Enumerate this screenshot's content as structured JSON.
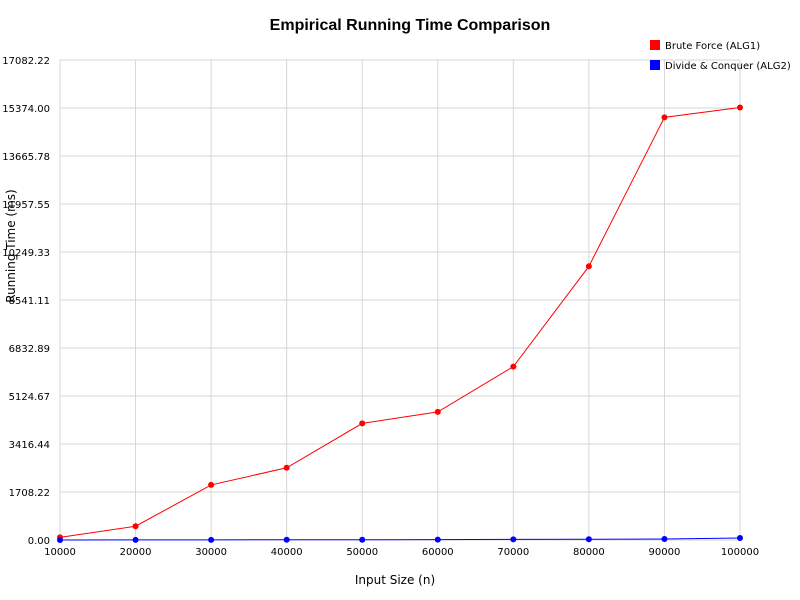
{
  "chart_data": {
    "type": "line",
    "title": "Empirical Running Time Comparison",
    "xlabel": "Input Size (n)",
    "ylabel": "Running Time (ms)",
    "x": [
      10000,
      20000,
      30000,
      40000,
      50000,
      60000,
      70000,
      80000,
      90000,
      100000
    ],
    "x_tick_labels": [
      "10000",
      "20000",
      "30000",
      "40000",
      "50000",
      "60000",
      "70000",
      "80000",
      "90000",
      "100000"
    ],
    "ylim": [
      0,
      17082.22
    ],
    "y_ticks": [
      0,
      1708.22,
      3416.44,
      5124.67,
      6832.89,
      8541.11,
      10249.33,
      11957.55,
      13665.78,
      15374.0,
      17082.22
    ],
    "y_tick_labels": [
      "0.00",
      "1708.22",
      "3416.44",
      "5124.67",
      "6832.89",
      "8541.11",
      "10249.33",
      "11957.55",
      "13665.78",
      "15374.00",
      "17082.22"
    ],
    "grid": true,
    "legend_position": "top-right",
    "series": [
      {
        "name": "Brute Force (ALG1)",
        "color": "#ff0000",
        "values": [
          95,
          490,
          1960,
          2570,
          4150,
          4560,
          6170,
          9740,
          15040,
          15390
        ]
      },
      {
        "name": "Divide & Conquer (ALG2)",
        "color": "#0000ff",
        "values": [
          2,
          4,
          6,
          8,
          9,
          12,
          24,
          28,
          34,
          70
        ]
      }
    ]
  }
}
